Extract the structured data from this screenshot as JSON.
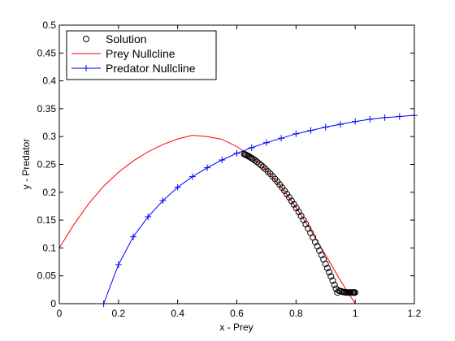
{
  "chart_data": {
    "type": "line",
    "title": "",
    "xlabel": "x - Prey",
    "ylabel": "y - Predator",
    "xlim": [
      0,
      1.2
    ],
    "ylim": [
      0,
      0.5
    ],
    "xticks": [
      0,
      0.2,
      0.4,
      0.6,
      0.8,
      1,
      1.2
    ],
    "xtick_labels": [
      "0",
      "0.2",
      "0.4",
      "0.6",
      "0.8",
      "1",
      "1.2"
    ],
    "yticks": [
      0,
      0.05,
      0.1,
      0.15,
      0.2,
      0.25,
      0.3,
      0.35,
      0.4,
      0.45,
      0.5
    ],
    "ytick_labels": [
      "0",
      "0.05",
      "0.1",
      "0.15",
      "0.2",
      "0.25",
      "0.3",
      "0.35",
      "0.4",
      "0.45",
      "0.5"
    ],
    "grid": false,
    "legend_position": "top-left",
    "series": [
      {
        "name": "Solution",
        "style": "markers",
        "marker": "circle",
        "color": "#000000",
        "x": [
          0.625,
          0.628,
          0.632,
          0.636,
          0.64,
          0.645,
          0.65,
          0.656,
          0.662,
          0.668,
          0.675,
          0.682,
          0.689,
          0.697,
          0.705,
          0.713,
          0.721,
          0.729,
          0.737,
          0.745,
          0.753,
          0.761,
          0.769,
          0.777,
          0.785,
          0.793,
          0.801,
          0.809,
          0.817,
          0.825,
          0.833,
          0.841,
          0.849,
          0.857,
          0.865,
          0.872,
          0.879,
          0.886,
          0.893,
          0.9,
          0.906,
          0.912,
          0.918,
          0.924,
          0.93,
          0.935,
          0.94,
          0.945,
          0.95,
          0.955,
          0.96,
          0.964,
          0.968,
          0.972,
          0.976,
          0.98,
          0.984,
          0.988,
          0.992,
          0.995,
          0.997,
          0.999
        ],
        "y": [
          0.2686,
          0.2678,
          0.2668,
          0.2657,
          0.2646,
          0.263,
          0.2613,
          0.2593,
          0.257,
          0.2547,
          0.2517,
          0.2486,
          0.2454,
          0.2415,
          0.2374,
          0.2331,
          0.2286,
          0.2238,
          0.2189,
          0.2137,
          0.2083,
          0.2027,
          0.1969,
          0.1909,
          0.1846,
          0.1782,
          0.1716,
          0.1647,
          0.1576,
          0.1503,
          0.1428,
          0.1351,
          0.1271,
          0.119,
          0.1106,
          0.103,
          0.0953,
          0.0874,
          0.0794,
          0.0711,
          0.0638,
          0.0565,
          0.049,
          0.0413,
          0.0335,
          0.0268,
          0.0201,
          0.0233,
          0.0225,
          0.0217,
          0.0209,
          0.0205,
          0.0203,
          0.0201,
          0.02,
          0.02,
          0.02,
          0.02,
          0.02,
          0.02,
          0.02,
          0.02
        ]
      },
      {
        "name": "Prey Nullcline",
        "style": "line",
        "color": "#ff0000",
        "x": [
          0,
          0.05,
          0.1,
          0.15,
          0.2,
          0.25,
          0.3,
          0.35,
          0.4,
          0.45,
          0.5,
          0.55,
          0.6,
          0.65,
          0.7,
          0.75,
          0.8,
          0.85,
          0.9,
          0.95,
          1.0
        ],
        "y": [
          0.1,
          0.1425,
          0.1799,
          0.2111,
          0.236,
          0.2562,
          0.2727,
          0.2859,
          0.2957,
          0.3023,
          0.3,
          0.295,
          0.282,
          0.264,
          0.2403,
          0.2093,
          0.173,
          0.1316,
          0.0871,
          0.0415,
          0.0
        ]
      },
      {
        "name": "Predator Nullcline",
        "style": "line+markers",
        "marker": "plus",
        "color": "#0000ff",
        "x": [
          0.15,
          0.2,
          0.25,
          0.3,
          0.35,
          0.4,
          0.45,
          0.5,
          0.55,
          0.6,
          0.65,
          0.7,
          0.75,
          0.8,
          0.85,
          0.9,
          0.95,
          1.0,
          1.05,
          1.1,
          1.15,
          1.2
        ],
        "y": [
          0.0,
          0.07,
          0.12,
          0.156,
          0.185,
          0.209,
          0.228,
          0.244,
          0.258,
          0.27,
          0.28,
          0.289,
          0.297,
          0.305,
          0.311,
          0.317,
          0.322,
          0.327,
          0.331,
          0.334,
          0.336,
          0.338
        ]
      }
    ]
  }
}
